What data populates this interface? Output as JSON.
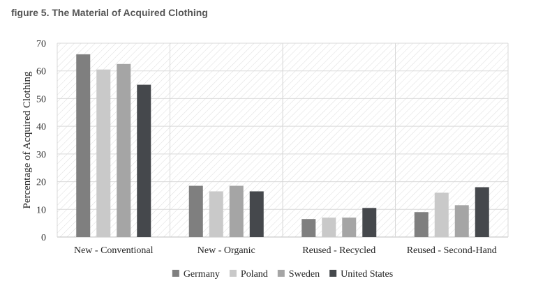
{
  "caption": "figure 5. The Material of Acquired Clothing",
  "chart_data": {
    "type": "bar",
    "title": "",
    "xlabel": "",
    "ylabel": "Percentage of Acquired Clothing",
    "ylim": [
      0,
      70
    ],
    "yticks": [
      0,
      10,
      20,
      30,
      40,
      50,
      60,
      70
    ],
    "grid": true,
    "legend_position": "bottom",
    "categories": [
      "New - Conventional",
      "New - Organic",
      "Reused - Recycled",
      "Reused - Second-Hand"
    ],
    "series": [
      {
        "name": "Germany",
        "color": "#7f7f7f",
        "values": [
          66,
          18.5,
          6.5,
          9
        ]
      },
      {
        "name": "Poland",
        "color": "#c9c9c9",
        "values": [
          60.5,
          16.5,
          7,
          16
        ]
      },
      {
        "name": "Sweden",
        "color": "#a5a5a5",
        "values": [
          62.5,
          18.5,
          7,
          11.5
        ]
      },
      {
        "name": "United States",
        "color": "#45484c",
        "values": [
          55,
          16.5,
          10.5,
          18
        ]
      }
    ]
  }
}
